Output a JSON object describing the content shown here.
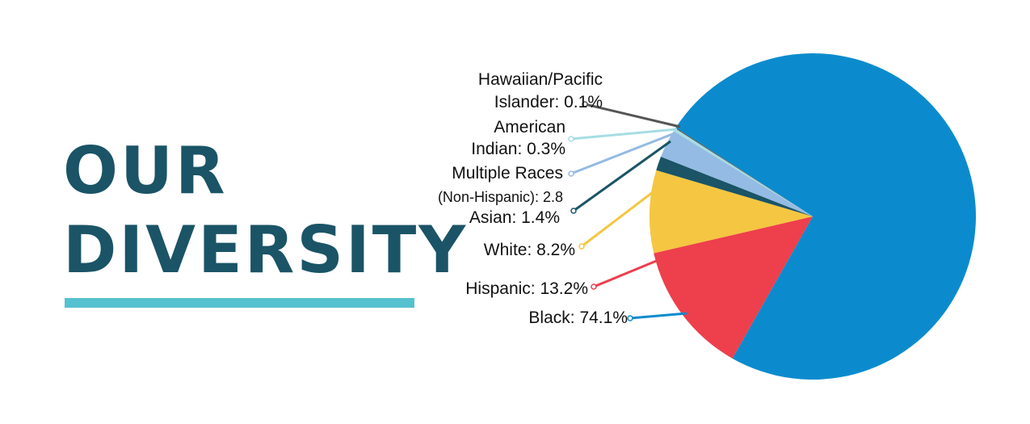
{
  "title_line1": "OUR",
  "title_line2": "DIVERSITY",
  "colors": {
    "title": "#1a5466",
    "underline": "#56c1cf"
  },
  "chart_data": {
    "type": "pie",
    "title": "OUR DIVERSITY",
    "slices": [
      {
        "name": "Black",
        "value": 74.1,
        "color": "#0b8bcd",
        "label": [
          "Black: 74.1%"
        ]
      },
      {
        "name": "Hispanic",
        "value": 13.2,
        "color": "#ee3f4c",
        "label": [
          "Hispanic: 13.2%"
        ]
      },
      {
        "name": "White",
        "value": 8.2,
        "color": "#f5c641",
        "label": [
          "White: 8.2%"
        ]
      },
      {
        "name": "Asian",
        "value": 1.4,
        "color": "#1a5466",
        "label": [
          "Asian: 1.4%"
        ]
      },
      {
        "name": "Multiple Races (Non-Hispanic)",
        "value": 2.8,
        "color": "#94bbe3",
        "label": [
          "Multiple Races",
          "(Non-Hispanic): 2.8"
        ]
      },
      {
        "name": "American Indian",
        "value": 0.3,
        "color": "#a6dde3",
        "label": [
          "American",
          "Indian: 0.3%"
        ]
      },
      {
        "name": "Hawaiian/Pacific Islander",
        "value": 0.1,
        "color": "#555555",
        "label": [
          "Hawaiian/Pacific",
          "Islander: 0.1%"
        ]
      }
    ]
  }
}
